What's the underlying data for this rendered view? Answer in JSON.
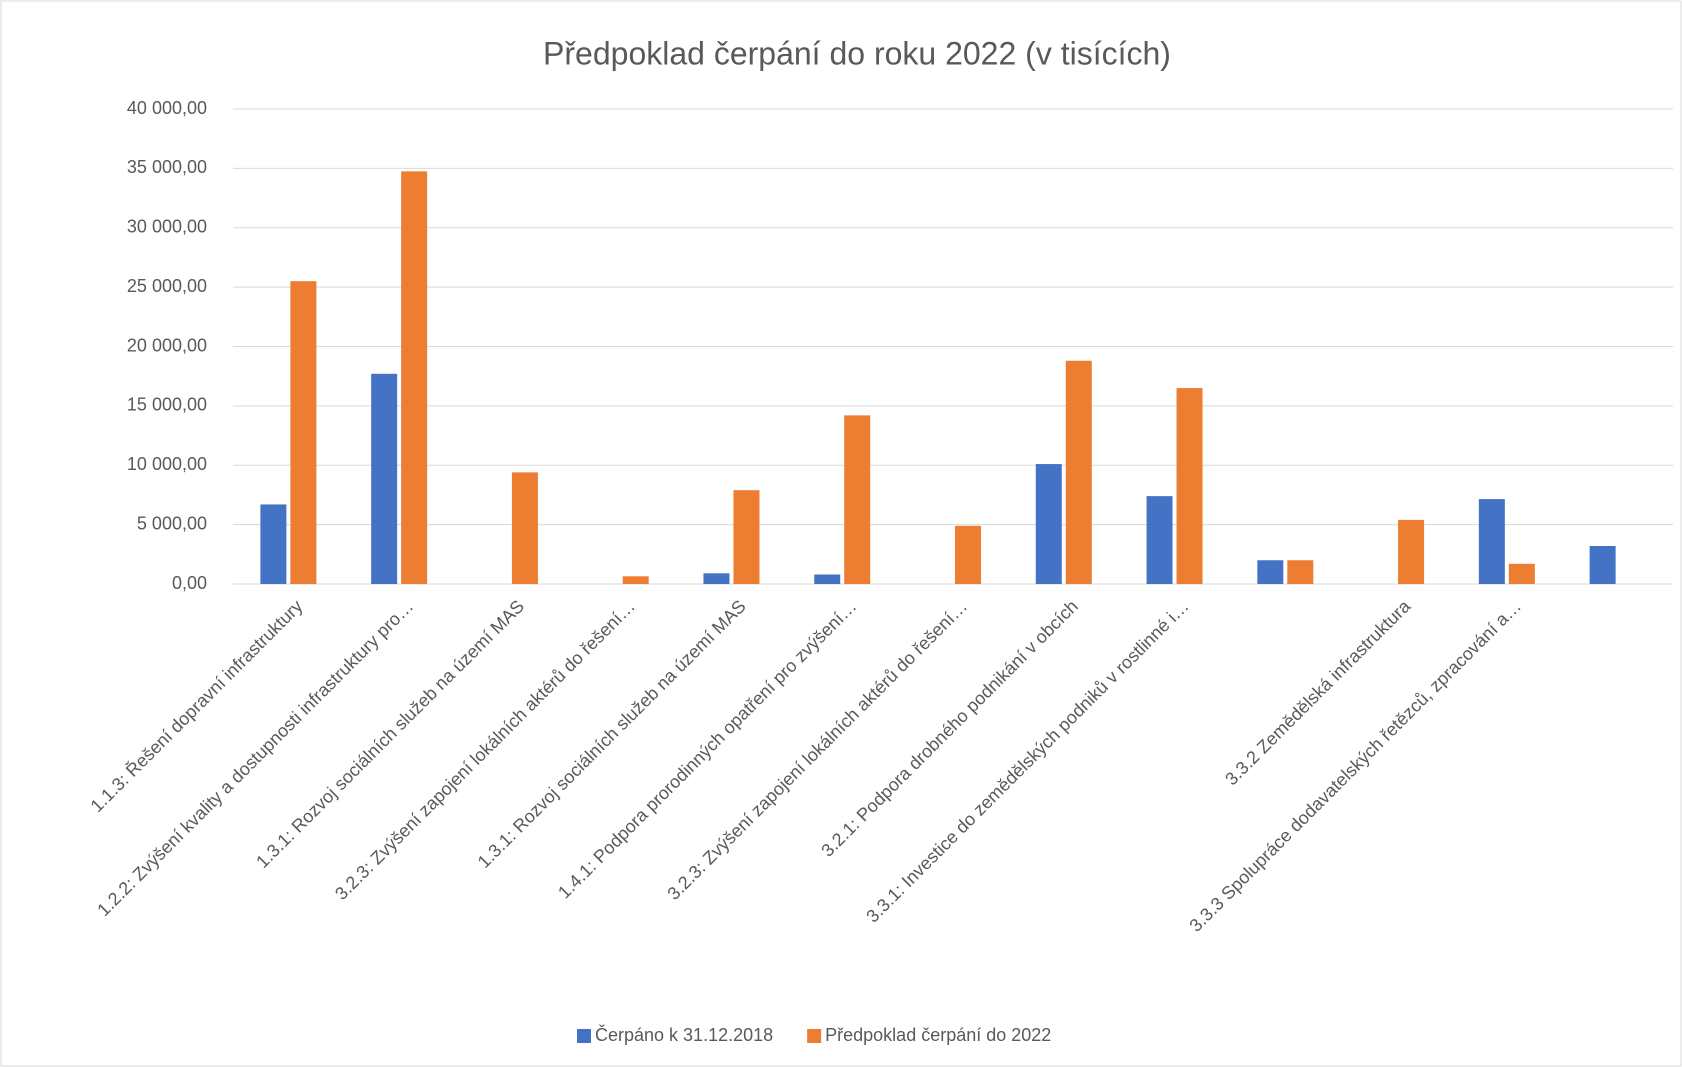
{
  "chart_data": {
    "type": "bar",
    "title": "Předpoklad čerpání do roku 2022 (v tisících)",
    "categories": [
      "1.1.3: Řešení dopravní infrastruktury",
      "1.2.2: Zvýšení kvality a dostupnosti infrastruktury pro…",
      "1.3.1: Rozvoj sociálních služeb na území MAS",
      "3.2.3: Zvýšení zapojení lokálních aktérů do řešení…",
      "1.3.1: Rozvoj sociálních služeb na území MAS",
      "1.4.1: Podpora prorodinných opatření pro zvýšení…",
      "3.2.3: Zvýšení zapojení lokálních aktérů do řešení…",
      "3.2.1: Podpora drobného podnikání v obcích",
      "3.3.1: Investice do zemědělských podniků v rostlinné i…",
      null,
      "3.3.2 Zemědělská infrastruktura",
      "3.3.3 Spolupráce dodavatelských řetězců, zpracování a…",
      null
    ],
    "series": [
      {
        "name": "Čerpáno k 31.12.2018",
        "color": "#4472c4",
        "values": [
          6700,
          17700,
          0,
          0,
          900,
          800,
          0,
          10100,
          7400,
          2000,
          0,
          7150,
          3200
        ]
      },
      {
        "name": "Předpoklad čerpání do 2022",
        "color": "#ed7d31",
        "values": [
          25500,
          34750,
          9400,
          650,
          7900,
          14200,
          4900,
          18800,
          16500,
          2000,
          5400,
          1700,
          0
        ]
      }
    ],
    "ylim": [
      0,
      40000
    ],
    "yticks": [
      {
        "value": 0,
        "label": "0,00"
      },
      {
        "value": 5000,
        "label": "5 000,00"
      },
      {
        "value": 10000,
        "label": "10 000,00"
      },
      {
        "value": 15000,
        "label": "15 000,00"
      },
      {
        "value": 20000,
        "label": "20 000,00"
      },
      {
        "value": 25000,
        "label": "25 000,00"
      },
      {
        "value": 30000,
        "label": "30 000,00"
      },
      {
        "value": 35000,
        "label": "35 000,00"
      },
      {
        "value": 40000,
        "label": "40 000,00"
      }
    ],
    "grid": true,
    "legend": "bottom"
  }
}
